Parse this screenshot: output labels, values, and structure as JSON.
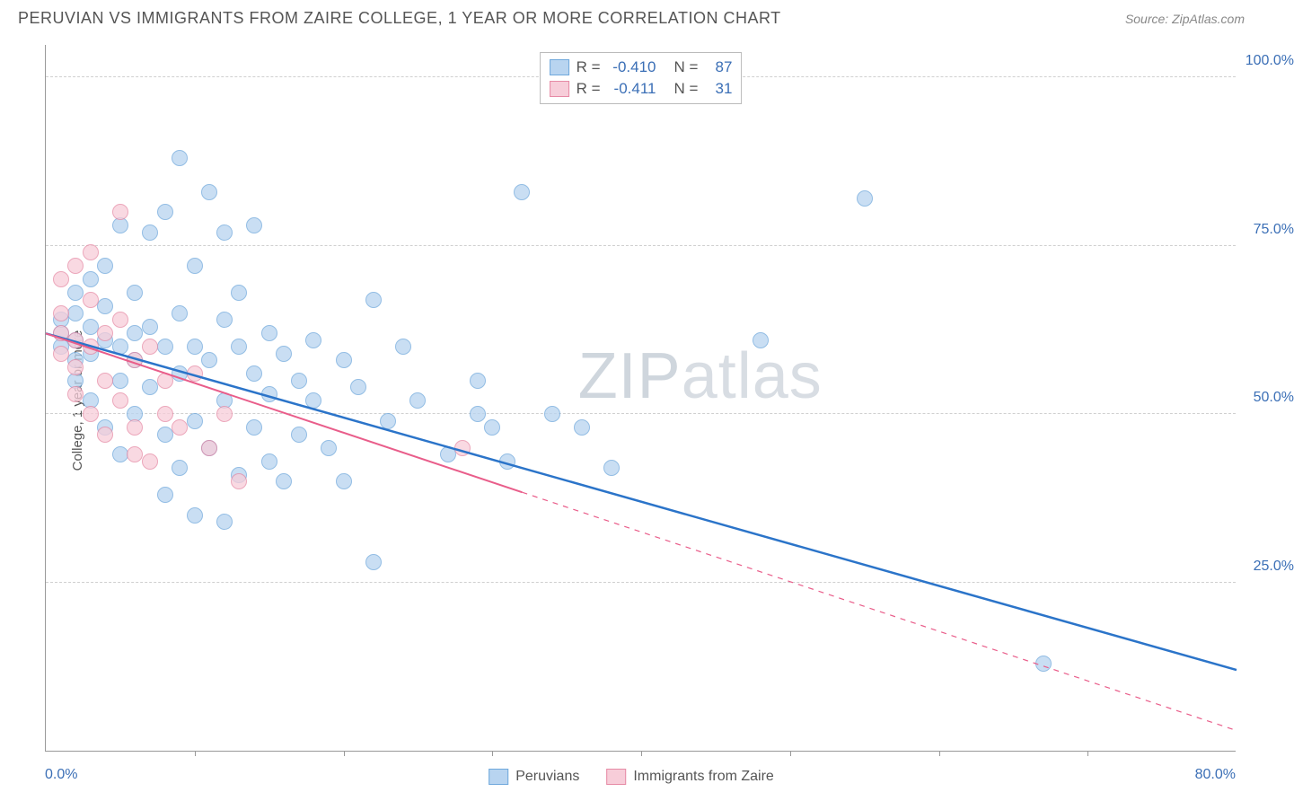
{
  "header": {
    "title": "PERUVIAN VS IMMIGRANTS FROM ZAIRE COLLEGE, 1 YEAR OR MORE CORRELATION CHART",
    "source": "Source: ZipAtlas.com"
  },
  "watermark": {
    "bold": "ZIP",
    "thin": "atlas"
  },
  "chart": {
    "type": "scatter",
    "ylabel": "College, 1 year or more",
    "xlim": [
      0,
      80
    ],
    "ylim": [
      0,
      105
    ],
    "x_start_label": "0.0%",
    "x_end_label": "80.0%",
    "yticks": [
      {
        "v": 25,
        "label": "25.0%"
      },
      {
        "v": 50,
        "label": "50.0%"
      },
      {
        "v": 75,
        "label": "75.0%"
      },
      {
        "v": 100,
        "label": "100.0%"
      }
    ],
    "xticks": [
      10,
      20,
      30,
      40,
      50,
      60,
      70
    ],
    "grid_color": "#d0d0d0",
    "background_color": "#ffffff",
    "series": [
      {
        "name": "Peruvians",
        "color_fill": "#b8d4f0",
        "color_stroke": "#6fa8dc",
        "marker_radius": 9,
        "R": "-0.410",
        "N": "87",
        "trend": {
          "x1": 0,
          "y1": 62,
          "x2": 80,
          "y2": 12,
          "solid_until_x": 80,
          "color": "#2b74c9",
          "width": 2.5
        },
        "points": [
          [
            1,
            62
          ],
          [
            1,
            60
          ],
          [
            1,
            64
          ],
          [
            2,
            61
          ],
          [
            2,
            58
          ],
          [
            2,
            65
          ],
          [
            2,
            55
          ],
          [
            2,
            68
          ],
          [
            3,
            63
          ],
          [
            3,
            59
          ],
          [
            3,
            70
          ],
          [
            3,
            52
          ],
          [
            4,
            61
          ],
          [
            4,
            66
          ],
          [
            4,
            48
          ],
          [
            4,
            72
          ],
          [
            5,
            60
          ],
          [
            5,
            55
          ],
          [
            5,
            78
          ],
          [
            5,
            44
          ],
          [
            6,
            62
          ],
          [
            6,
            58
          ],
          [
            6,
            68
          ],
          [
            6,
            50
          ],
          [
            7,
            77
          ],
          [
            7,
            54
          ],
          [
            7,
            63
          ],
          [
            8,
            80
          ],
          [
            8,
            47
          ],
          [
            8,
            60
          ],
          [
            8,
            38
          ],
          [
            9,
            88
          ],
          [
            9,
            56
          ],
          [
            9,
            65
          ],
          [
            9,
            42
          ],
          [
            10,
            60
          ],
          [
            10,
            72
          ],
          [
            10,
            49
          ],
          [
            10,
            35
          ],
          [
            11,
            83
          ],
          [
            11,
            58
          ],
          [
            11,
            45
          ],
          [
            12,
            77
          ],
          [
            12,
            52
          ],
          [
            12,
            64
          ],
          [
            12,
            34
          ],
          [
            13,
            60
          ],
          [
            13,
            68
          ],
          [
            13,
            41
          ],
          [
            14,
            56
          ],
          [
            14,
            48
          ],
          [
            14,
            78
          ],
          [
            15,
            62
          ],
          [
            15,
            43
          ],
          [
            15,
            53
          ],
          [
            16,
            59
          ],
          [
            16,
            40
          ],
          [
            17,
            55
          ],
          [
            17,
            47
          ],
          [
            18,
            61
          ],
          [
            18,
            52
          ],
          [
            19,
            45
          ],
          [
            20,
            58
          ],
          [
            20,
            40
          ],
          [
            21,
            54
          ],
          [
            22,
            67
          ],
          [
            22,
            28
          ],
          [
            23,
            49
          ],
          [
            24,
            60
          ],
          [
            25,
            52
          ],
          [
            27,
            44
          ],
          [
            29,
            50
          ],
          [
            29,
            55
          ],
          [
            30,
            48
          ],
          [
            31,
            43
          ],
          [
            32,
            83
          ],
          [
            34,
            50
          ],
          [
            36,
            48
          ],
          [
            38,
            42
          ],
          [
            48,
            61
          ],
          [
            55,
            82
          ],
          [
            67,
            13
          ]
        ]
      },
      {
        "name": "Immigrants from Zaire",
        "color_fill": "#f7cdd9",
        "color_stroke": "#e68aa5",
        "marker_radius": 9,
        "R": "-0.411",
        "N": "31",
        "trend": {
          "x1": 0,
          "y1": 62,
          "x2": 80,
          "y2": 3,
          "solid_until_x": 32,
          "color": "#e95d8a",
          "width": 2
        },
        "points": [
          [
            1,
            62
          ],
          [
            1,
            59
          ],
          [
            1,
            65
          ],
          [
            1,
            70
          ],
          [
            2,
            61
          ],
          [
            2,
            57
          ],
          [
            2,
            72
          ],
          [
            2,
            53
          ],
          [
            3,
            60
          ],
          [
            3,
            67
          ],
          [
            3,
            50
          ],
          [
            3,
            74
          ],
          [
            4,
            62
          ],
          [
            4,
            55
          ],
          [
            4,
            47
          ],
          [
            5,
            64
          ],
          [
            5,
            52
          ],
          [
            5,
            80
          ],
          [
            6,
            58
          ],
          [
            6,
            48
          ],
          [
            6,
            44
          ],
          [
            7,
            60
          ],
          [
            7,
            43
          ],
          [
            8,
            55
          ],
          [
            8,
            50
          ],
          [
            9,
            48
          ],
          [
            10,
            56
          ],
          [
            11,
            45
          ],
          [
            12,
            50
          ],
          [
            13,
            40
          ],
          [
            28,
            45
          ]
        ]
      }
    ],
    "legend_bottom": [
      {
        "label": "Peruvians",
        "fill": "#b8d4f0",
        "stroke": "#6fa8dc"
      },
      {
        "label": "Immigrants from Zaire",
        "fill": "#f7cdd9",
        "stroke": "#e68aa5"
      }
    ]
  }
}
